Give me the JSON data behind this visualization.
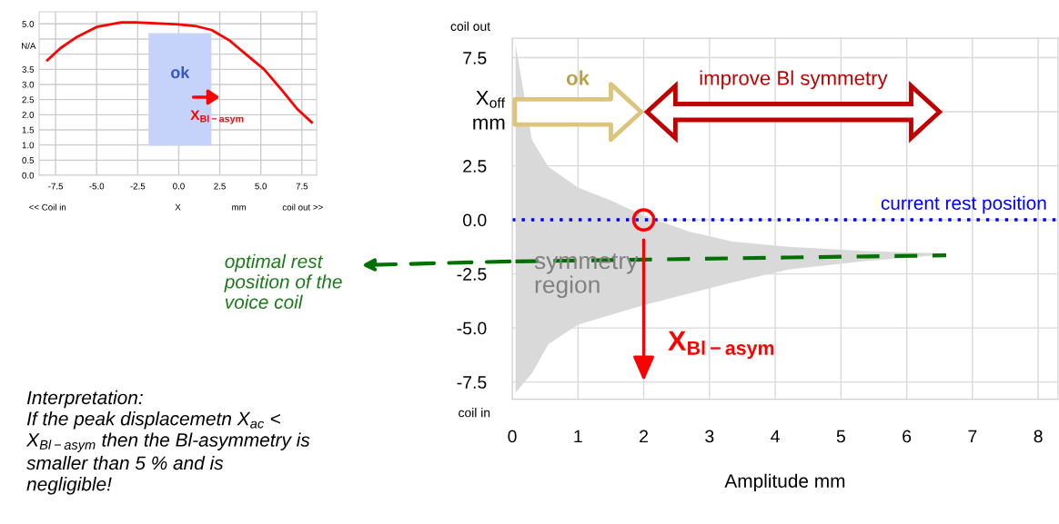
{
  "chart_data": [
    {
      "type": "line",
      "xlabel": "Amplitude mm",
      "ylabel": "X$_{off}$\nmm",
      "xlim": [
        0,
        8.3
      ],
      "ylim": [
        -8.3,
        8.4
      ],
      "xticks": [
        0,
        1,
        2,
        3,
        4,
        5,
        6,
        7,
        8
      ],
      "yticks": [
        -7.5,
        {
          "value": -5,
          "label": "-5.0"
        },
        -2.5,
        {
          "value": 0,
          "label": "0.0"
        },
        2.5,
        {
          "value": 5,
          "label": null
        },
        7.5
      ],
      "grid": true,
      "series": [
        {
          "color": "#007000",
          "line_style": "dashed",
          "x": [
            0.05,
            0.3,
            0.55,
            1.0,
            1.5,
            2.0,
            2.7,
            3.35,
            4.2,
            5.4,
            6.6
          ],
          "values": [
            -1.92,
            -1.91,
            -1.9,
            -1.88,
            -1.86,
            -1.84,
            -1.81,
            -1.78,
            -1.74,
            -1.69,
            -1.64
          ],
          "upper": [
            8.1,
            3.7,
            2.45,
            1.5,
            0.9,
            0.2,
            -0.55,
            -1.0,
            -1.25,
            -1.45,
            -1.55
          ],
          "lower": [
            -8.0,
            -7.1,
            -5.75,
            -4.85,
            -4.4,
            -3.95,
            -3.4,
            -2.9,
            -2.3,
            -1.9,
            -1.6
          ]
        },
        {
          "type": "scatter",
          "color": "#ff0000",
          "marker": "circle",
          "x": [
            2
          ],
          "values": [
            0
          ]
        }
      ],
      "ref_lines": [
        {
          "axis": "y",
          "value": 0,
          "label": "current rest position",
          "color": "#0000ff",
          "line_style": "dotted"
        }
      ],
      "annotations": [
        "coil out",
        "coil in",
        "symmetry\nregion",
        "optimal rest\nposition of the\nvoice coil",
        "Interpretation:\nIf the peak displacemetn X$_{ac}$ <\nX$_{Bl−asym}$ then the Bl-asymmetry is\nsmaller than 5 % and is\nnegligible!",
        "X$_{Bl−asym}$",
        "ok",
        "improve Bl symmetry"
      ]
    },
    {
      "type": "line",
      "ylabel": "N/A",
      "xlim": [
        -8.5,
        8.4
      ],
      "ylim": [
        0,
        5.4
      ],
      "xticks": [
        -7.5,
        {
          "value": -5,
          "label": "-5.0"
        },
        -2.5,
        {
          "value": 0,
          "label": "0.0"
        },
        2.5,
        {
          "value": 5,
          "label": "5.0"
        },
        7.5
      ],
      "yticks": [
        {
          "value": 0,
          "label": "0.0"
        },
        0.5,
        {
          "value": 1,
          "label": "1.0"
        },
        1.5,
        {
          "value": 2,
          "label": "2.0"
        },
        2.5,
        {
          "value": 3,
          "label": "3.0"
        },
        3.5,
        {
          "value": 4,
          "label": null
        },
        {
          "value": 4.5,
          "label": null
        },
        {
          "value": 5,
          "label": "5.0"
        }
      ],
      "grid": true,
      "series": [
        {
          "color": "#ff0000",
          "x": [
            -8.0,
            -7.2,
            -6.26,
            -5.0,
            -3.5,
            -2.6,
            0.0,
            1.1,
            2.0,
            3.1,
            4.2,
            5.2,
            6.3,
            7.2,
            8.1
          ],
          "values": [
            3.8,
            4.2,
            4.55,
            4.9,
            5.05,
            5.05,
            4.98,
            4.92,
            4.8,
            4.45,
            3.95,
            3.5,
            2.8,
            2.2,
            1.75
          ]
        }
      ],
      "bands": [
        {
          "axis": "x",
          "from": -1.84,
          "to": 1.99,
          "label": "ok",
          "color": "#c5d3fb"
        }
      ],
      "annotations": [
        "X$_{Bl−asym}$",
        "<< Coil in",
        "X",
        "mm",
        "coil out >>"
      ]
    }
  ]
}
